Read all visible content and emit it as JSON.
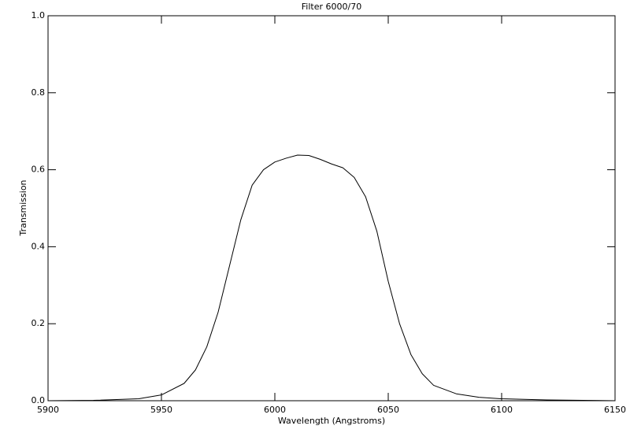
{
  "chart_data": {
    "type": "line",
    "title": "Filter 6000/70",
    "x_label": "Wavelength (Angstroms)",
    "y_label": "Transmission",
    "x": [
      5900,
      5920,
      5940,
      5950,
      5960,
      5965,
      5970,
      5975,
      5980,
      5985,
      5990,
      5995,
      6000,
      6005,
      6010,
      6015,
      6020,
      6025,
      6030,
      6035,
      6040,
      6045,
      6050,
      6055,
      6060,
      6065,
      6070,
      6080,
      6090,
      6100,
      6120,
      6150
    ],
    "series": [
      {
        "name": "Transmission",
        "color": "#000000",
        "values": [
          0.0,
          0.001,
          0.005,
          0.015,
          0.045,
          0.08,
          0.14,
          0.23,
          0.35,
          0.47,
          0.56,
          0.6,
          0.62,
          0.63,
          0.638,
          0.637,
          0.627,
          0.615,
          0.605,
          0.58,
          0.53,
          0.44,
          0.31,
          0.2,
          0.12,
          0.07,
          0.04,
          0.018,
          0.009,
          0.005,
          0.002,
          0.0
        ]
      }
    ],
    "xlim": [
      5900,
      6150
    ],
    "xticks": [
      5900,
      5950,
      6000,
      6050,
      6100,
      6150
    ],
    "ylim": [
      0,
      1
    ],
    "yticks": [
      {
        "value": 0,
        "label": "0.0"
      },
      {
        "value": 0.2,
        "label": "0.2"
      },
      {
        "value": 0.4,
        "label": "0.4"
      },
      {
        "value": 0.6,
        "label": "0.6"
      },
      {
        "value": 0.8,
        "label": "0.8"
      },
      {
        "value": 1,
        "label": "1.0"
      }
    ],
    "grid": false
  }
}
